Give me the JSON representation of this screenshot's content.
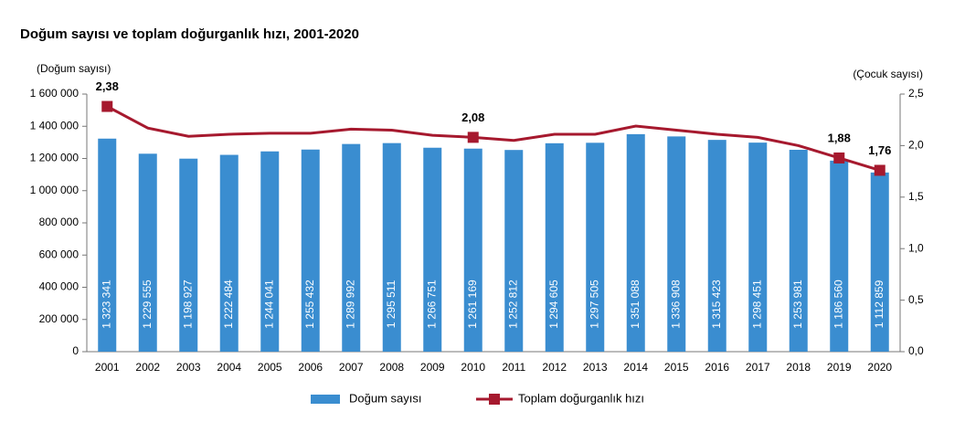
{
  "chart_data": {
    "type": "bar+line",
    "title": "Doğum sayısı ve toplam doğurganlık hızı, 2001-2020",
    "y_label": "(Doğum sayısı)",
    "y2_label": "(Çocuk sayısı)",
    "categories": [
      "2001",
      "2002",
      "2003",
      "2004",
      "2005",
      "2006",
      "2007",
      "2008",
      "2009",
      "2010",
      "2011",
      "2012",
      "2013",
      "2014",
      "2015",
      "2016",
      "2017",
      "2018",
      "2019",
      "2020"
    ],
    "series": [
      {
        "name": "Doğum sayısı",
        "type": "bar",
        "color": "#3a8dd0",
        "axis": "y",
        "values": [
          1323341,
          1229555,
          1198927,
          1222484,
          1244041,
          1255432,
          1289992,
          1295511,
          1266751,
          1261169,
          1252812,
          1294605,
          1297505,
          1351088,
          1336908,
          1315423,
          1298451,
          1253981,
          1186560,
          1112859
        ],
        "value_labels": [
          "1 323 341",
          "1 229 555",
          "1 198 927",
          "1 222 484",
          "1 244 041",
          "1 255 432",
          "1 289 992",
          "1 295 511",
          "1 266 751",
          "1 261 169",
          "1 252 812",
          "1 294 605",
          "1 297 505",
          "1 351 088",
          "1 336 908",
          "1 315 423",
          "1 298 451",
          "1 253 981",
          "1 186 560",
          "1 112 859"
        ]
      },
      {
        "name": "Toplam doğurganlık hızı",
        "type": "line",
        "color": "#a6192e",
        "axis": "y2",
        "values": [
          2.38,
          2.17,
          2.09,
          2.11,
          2.12,
          2.12,
          2.16,
          2.15,
          2.1,
          2.08,
          2.05,
          2.11,
          2.11,
          2.19,
          2.15,
          2.11,
          2.08,
          2.0,
          1.88,
          1.76
        ],
        "value_labels": [
          "2,38",
          null,
          null,
          null,
          null,
          null,
          null,
          null,
          null,
          "2,08",
          null,
          null,
          null,
          null,
          null,
          null,
          null,
          null,
          "1,88",
          "1,76"
        ]
      }
    ],
    "ylim": [
      0,
      1600000
    ],
    "yticks": [
      0,
      {
        "value": 200000,
        "label": "200 000"
      },
      {
        "value": 400000,
        "label": "400 000"
      },
      {
        "value": 600000,
        "label": "600 000"
      },
      {
        "value": 800000,
        "label": "800 000"
      },
      {
        "value": 1000000,
        "label": "1 000 000"
      },
      {
        "value": 1200000,
        "label": "1 200 000"
      },
      {
        "value": 1400000,
        "label": "1 400 000"
      },
      {
        "value": 1600000,
        "label": "1 600 000"
      }
    ],
    "y2lim": [
      0,
      2.5
    ],
    "y2ticks": [
      {
        "value": 0,
        "label": "0,0"
      },
      {
        "value": 0.5,
        "label": "0,5"
      },
      {
        "value": 1,
        "label": "1,0"
      },
      {
        "value": 1.5,
        "label": "1,5"
      },
      {
        "value": 2,
        "label": "2,0"
      },
      {
        "value": 2.5,
        "label": "2,5"
      }
    ],
    "legend": "bottom"
  }
}
